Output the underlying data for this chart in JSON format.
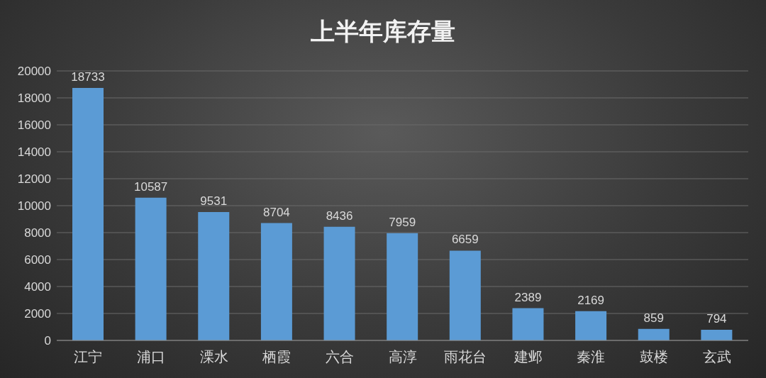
{
  "chart_data": {
    "type": "bar",
    "title": "上半年库存量",
    "categories": [
      "江宁",
      "浦口",
      "溧水",
      "栖霞",
      "六合",
      "高淳",
      "雨花台",
      "建邺",
      "秦淮",
      "鼓楼",
      "玄武"
    ],
    "values": [
      18733,
      10587,
      9531,
      8704,
      8436,
      7959,
      6659,
      2389,
      2169,
      859,
      794
    ],
    "color": "#5b9bd5",
    "ylim": [
      0,
      20000
    ],
    "yticks": [
      0,
      2000,
      4000,
      6000,
      8000,
      10000,
      12000,
      14000,
      16000,
      18000,
      20000
    ],
    "grid": "y",
    "data_labels": true
  }
}
